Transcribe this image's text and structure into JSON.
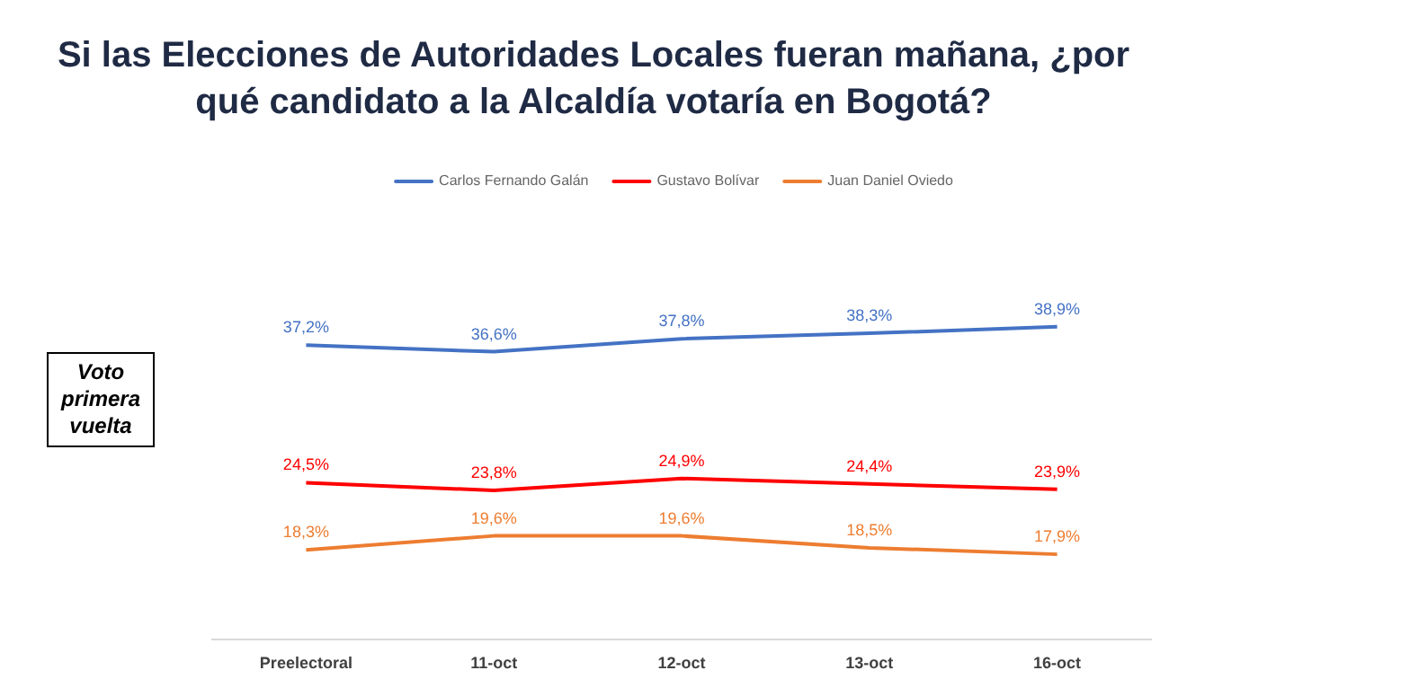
{
  "chart_data": {
    "type": "line",
    "title": "Si las Elecciones de Autoridades Locales fueran mañana, ¿por qué candidato a la Alcaldía votaría en Bogotá?",
    "categories": [
      "Preelectoral",
      "11-oct",
      "12-oct",
      "13-oct",
      "16-oct"
    ],
    "series": [
      {
        "name": "Carlos Fernando Galán",
        "color": "#4472c4",
        "values": [
          37.2,
          36.6,
          37.8,
          38.3,
          38.9
        ],
        "value_labels": [
          "37,2%",
          "36,6%",
          "37,8%",
          "38,3%",
          "38,9%"
        ]
      },
      {
        "name": "Gustavo Bolívar",
        "color": "#ff0000",
        "values": [
          24.5,
          23.8,
          24.9,
          24.4,
          23.9
        ],
        "value_labels": [
          "24,5%",
          "23,8%",
          "24,9%",
          "24,4%",
          "23,9%"
        ]
      },
      {
        "name": "Juan Daniel Oviedo",
        "color": "#ed7d31",
        "values": [
          18.3,
          19.6,
          19.6,
          18.5,
          17.9
        ],
        "value_labels": [
          "18,3%",
          "19,6%",
          "19,6%",
          "18,5%",
          "17,9%"
        ]
      }
    ],
    "relative": false,
    "tick_labels": "x",
    "legend": "top",
    "marker": "none",
    "line_style": "solid",
    "annotations": [
      "Voto primera vuelta"
    ]
  }
}
